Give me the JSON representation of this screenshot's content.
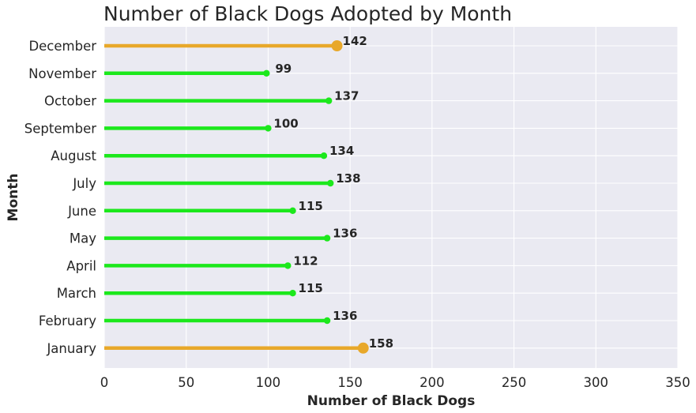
{
  "chart_data": {
    "type": "lollipop",
    "title": "Number of Black Dogs Adopted by Month",
    "xlabel": "Number of Black Dogs",
    "ylabel": "Month",
    "xlim": [
      0,
      350
    ],
    "xticks": [
      "0",
      "50",
      "100",
      "150",
      "200",
      "250",
      "300",
      "350"
    ],
    "grid": true,
    "orientation": "horizontal",
    "categories": [
      "January",
      "February",
      "March",
      "April",
      "May",
      "June",
      "July",
      "August",
      "September",
      "October",
      "November",
      "December"
    ],
    "values": [
      158,
      136,
      115,
      112,
      136,
      115,
      138,
      134,
      100,
      137,
      99,
      142
    ],
    "value_labels": [
      "158",
      "136",
      "115",
      "112",
      "136",
      "115",
      "138",
      "134",
      "100",
      "137",
      "99",
      "142"
    ],
    "highlighted": [
      "January",
      "December"
    ],
    "colors": {
      "highlight": "#E8A82A",
      "normal": "#1CE81C",
      "plot_background": "#EAEAF2",
      "grid": "#FFFFFF"
    }
  }
}
